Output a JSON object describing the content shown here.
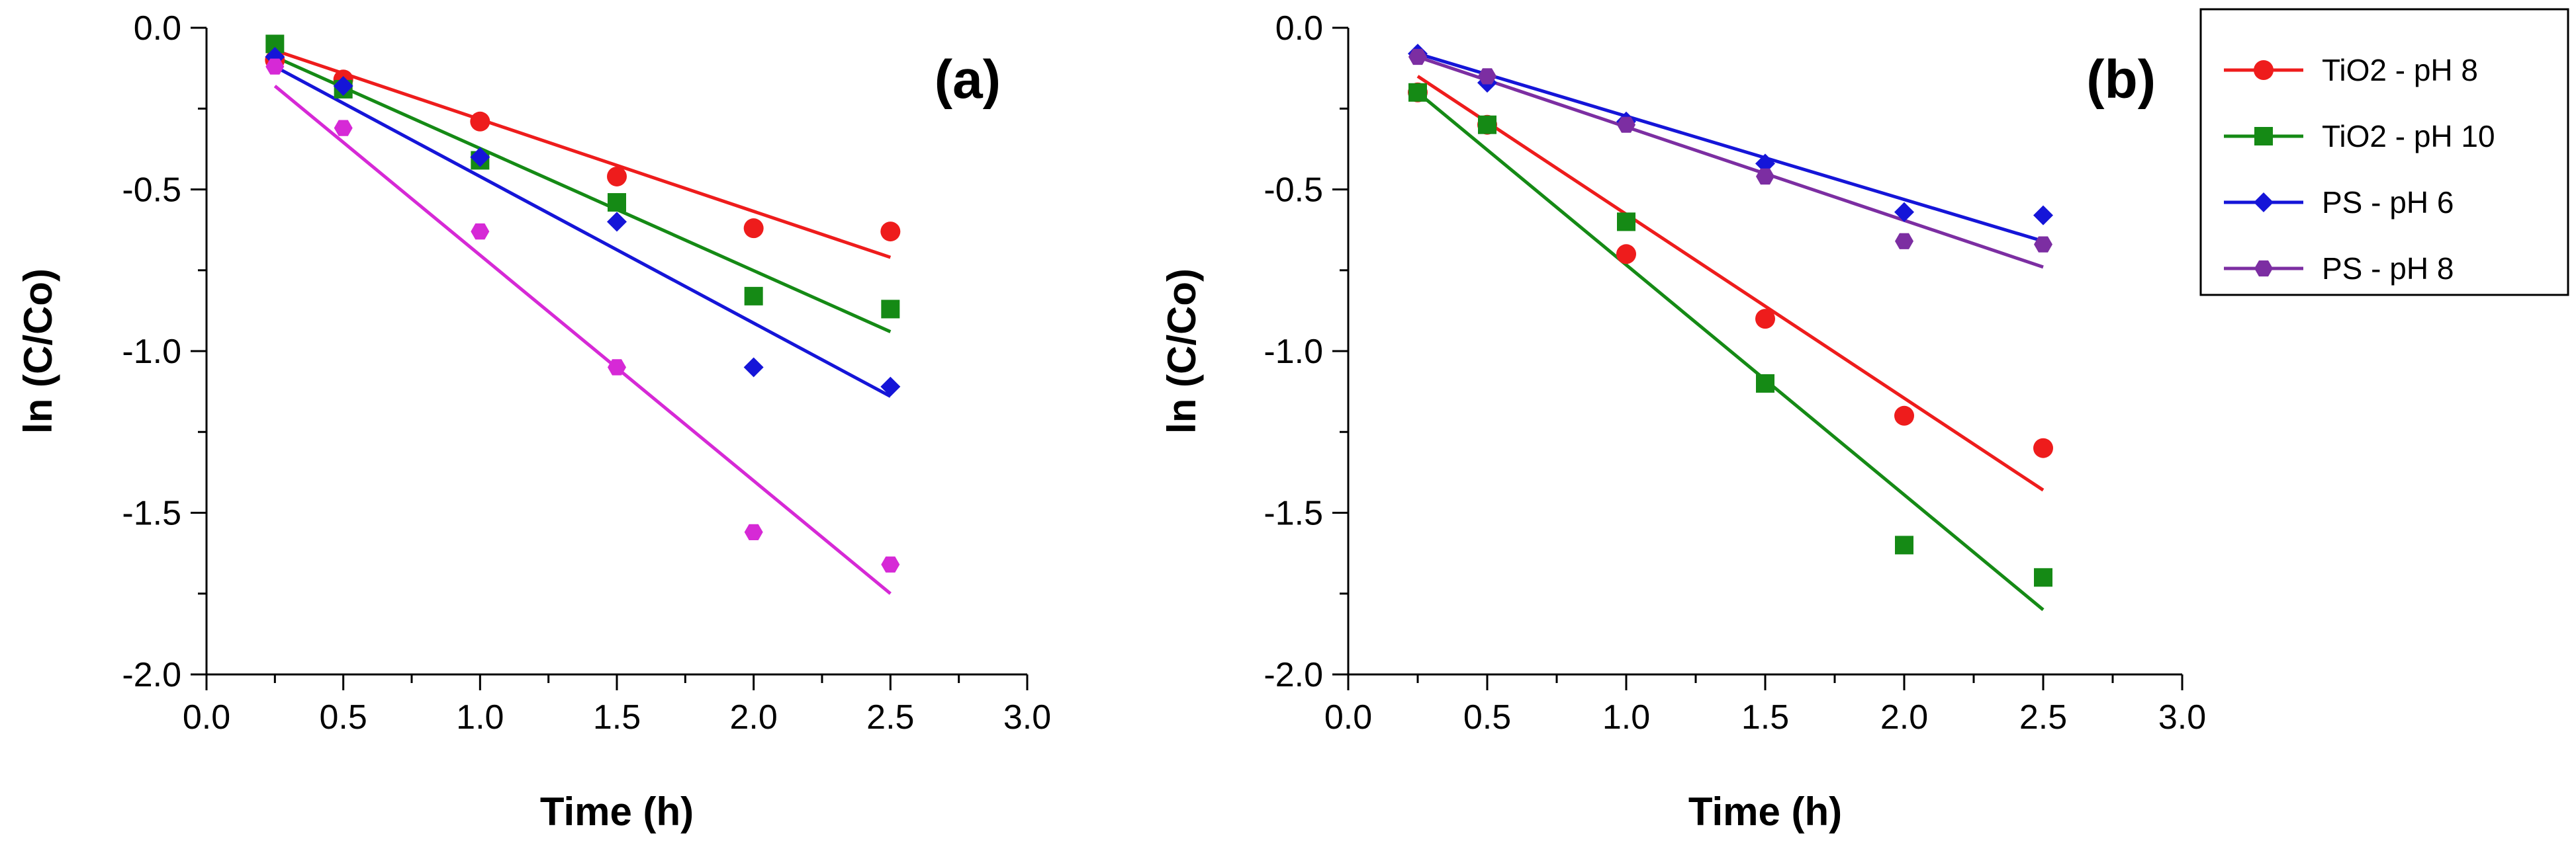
{
  "figure": {
    "legend": [
      {
        "name": "TiO2 - pH 8",
        "color": "#ee1c1c",
        "marker": "circle"
      },
      {
        "name": "TiO2 - pH 10",
        "color": "#158a15",
        "marker": "square"
      },
      {
        "name": "PS - pH 6",
        "color": "#1515d8",
        "marker": "diamond"
      },
      {
        "name": "PS - pH 8",
        "color": "#7c2ea2",
        "marker": "hexagon"
      }
    ]
  },
  "chart_data": [
    {
      "type": "scatter",
      "panel_label": "(a)",
      "title": "",
      "xlabel": "Time (h)",
      "ylabel": "ln (C/Co)",
      "xlim": [
        0.0,
        3.0
      ],
      "ylim": [
        -2.0,
        0.0
      ],
      "xticks": [
        "0.0",
        "0.5",
        "1.0",
        "1.5",
        "2.0",
        "2.5",
        "3.0"
      ],
      "yticks": [
        "0.0",
        "-0.5",
        "-1.0",
        "-1.5",
        "-2.0"
      ],
      "grid": false,
      "series": [
        {
          "name": "TiO2 - pH 8",
          "color": "#ee1c1c",
          "marker": "circle",
          "x": [
            0.25,
            0.5,
            1.0,
            1.5,
            2.0,
            2.5
          ],
          "y": [
            -0.1,
            -0.16,
            -0.29,
            -0.46,
            -0.62,
            -0.63
          ],
          "fit": [
            [
              0.25,
              -0.07
            ],
            [
              2.5,
              -0.71
            ]
          ]
        },
        {
          "name": "TiO2 - pH 10",
          "color": "#158a15",
          "marker": "square",
          "x": [
            0.25,
            0.5,
            1.0,
            1.5,
            2.0,
            2.5
          ],
          "y": [
            -0.05,
            -0.19,
            -0.41,
            -0.54,
            -0.83,
            -0.87
          ],
          "fit": [
            [
              0.25,
              -0.09
            ],
            [
              2.5,
              -0.94
            ]
          ]
        },
        {
          "name": "PS - pH 6",
          "color": "#1515d8",
          "marker": "diamond",
          "x": [
            0.25,
            0.5,
            1.0,
            1.5,
            2.0,
            2.5
          ],
          "y": [
            -0.09,
            -0.18,
            -0.4,
            -0.6,
            -1.05,
            -1.11
          ],
          "fit": [
            [
              0.25,
              -0.12
            ],
            [
              2.5,
              -1.14
            ]
          ]
        },
        {
          "name": "PS - pH 8",
          "color": "#d629d6",
          "marker": "hexagon",
          "x": [
            0.25,
            0.5,
            1.0,
            1.5,
            2.0,
            2.5
          ],
          "y": [
            -0.12,
            -0.31,
            -0.63,
            -1.05,
            -1.56,
            -1.66
          ],
          "fit": [
            [
              0.25,
              -0.18
            ],
            [
              2.5,
              -1.75
            ]
          ]
        }
      ]
    },
    {
      "type": "scatter",
      "panel_label": "(b)",
      "title": "",
      "xlabel": "Time (h)",
      "ylabel": "ln (C/Co)",
      "xlim": [
        0.0,
        3.0
      ],
      "ylim": [
        -2.0,
        0.0
      ],
      "xticks": [
        "0.0",
        "0.5",
        "1.0",
        "1.5",
        "2.0",
        "2.5",
        "3.0"
      ],
      "yticks": [
        "0.0",
        "-0.5",
        "-1.0",
        "-1.5",
        "-2.0"
      ],
      "grid": false,
      "series": [
        {
          "name": "TiO2 - pH 8",
          "color": "#ee1c1c",
          "marker": "circle",
          "x": [
            0.25,
            0.5,
            1.0,
            1.5,
            2.0,
            2.5
          ],
          "y": [
            -0.2,
            -0.3,
            -0.7,
            -0.9,
            -1.2,
            -1.3
          ],
          "fit": [
            [
              0.25,
              -0.15
            ],
            [
              2.5,
              -1.43
            ]
          ]
        },
        {
          "name": "TiO2 - pH 10",
          "color": "#158a15",
          "marker": "square",
          "x": [
            0.25,
            0.5,
            1.0,
            1.5,
            2.0,
            2.5
          ],
          "y": [
            -0.2,
            -0.3,
            -0.6,
            -1.1,
            -1.6,
            -1.7
          ],
          "fit": [
            [
              0.25,
              -0.2
            ],
            [
              2.5,
              -1.8
            ]
          ]
        },
        {
          "name": "PS - pH 6",
          "color": "#1515d8",
          "marker": "diamond",
          "x": [
            0.25,
            0.5,
            1.0,
            1.5,
            2.0,
            2.5
          ],
          "y": [
            -0.08,
            -0.17,
            -0.29,
            -0.42,
            -0.57,
            -0.58
          ],
          "fit": [
            [
              0.25,
              -0.08
            ],
            [
              2.5,
              -0.66
            ]
          ]
        },
        {
          "name": "PS - pH 8",
          "color": "#7c2ea2",
          "marker": "hexagon",
          "x": [
            0.25,
            0.5,
            1.0,
            1.5,
            2.0,
            2.5
          ],
          "y": [
            -0.09,
            -0.15,
            -0.3,
            -0.46,
            -0.66,
            -0.67
          ],
          "fit": [
            [
              0.25,
              -0.09
            ],
            [
              2.5,
              -0.74
            ]
          ]
        }
      ]
    }
  ]
}
